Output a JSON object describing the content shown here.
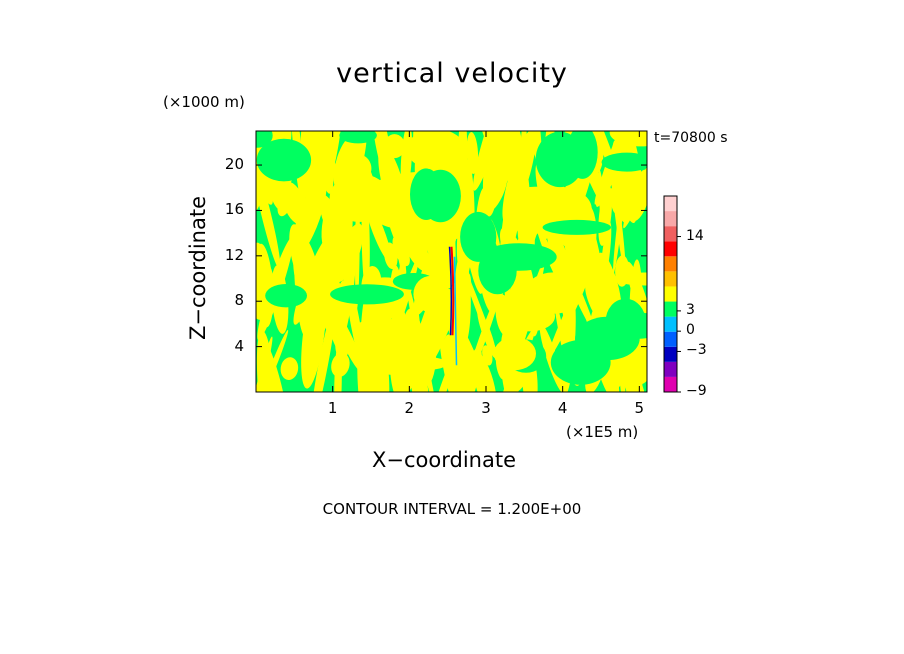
{
  "chart_data": {
    "type": "heatmap",
    "title": "vertical velocity",
    "time_label": "t=70800 s",
    "xlabel": "X−coordinate",
    "ylabel": "Z−coordinate",
    "x_unit": "(×1E5 m)",
    "y_unit": "(×1000 m)",
    "x_ticks": [
      "1",
      "2",
      "3",
      "4",
      "5"
    ],
    "x_tick_values": [
      1,
      2,
      3,
      4,
      5
    ],
    "y_ticks": [
      "4",
      "8",
      "12",
      "16",
      "20"
    ],
    "y_tick_values": [
      4,
      8,
      12,
      16,
      20
    ],
    "xlim": [
      0,
      5.1
    ],
    "ylim": [
      0,
      23
    ],
    "contour_note": "CONTOUR INTERVAL = 1.200E+00",
    "colorbar": {
      "tick_labels": [
        "14",
        "3",
        "0",
        "−3",
        "−9"
      ],
      "tick_values": [
        14,
        3,
        0,
        -3,
        -9
      ],
      "min": -9,
      "max": 20,
      "colors": [
        "#e000b0",
        "#8000c0",
        "#0000c0",
        "#0060ff",
        "#00c0ff",
        "#00ff60",
        "#ffff00",
        "#ffc000",
        "#ff8000",
        "#ff0000",
        "#f06060",
        "#f8a8a8",
        "#ffd0d0"
      ]
    },
    "field_colors": {
      "positive": "#ffff00",
      "negative": "#00ff60"
    }
  }
}
